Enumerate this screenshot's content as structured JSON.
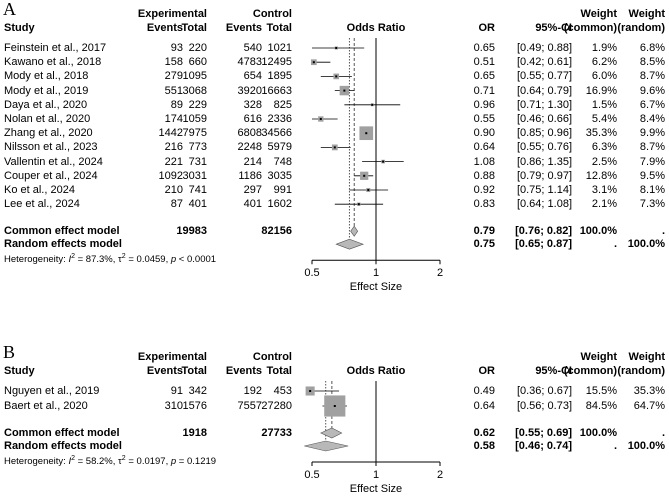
{
  "colors": {
    "box": "#a0a0a0",
    "diamond": "#b8b8b8",
    "line": "#000000",
    "dashed": "#555555"
  },
  "headers": {
    "experimental": "Experimental",
    "control": "Control",
    "study": "Study",
    "events": "Events",
    "total": "Total",
    "odds_ratio": "Odds Ratio",
    "or": "OR",
    "ci": "95%-CI",
    "weight": "Weight",
    "common": "(common)",
    "random": "(random)",
    "x_label": "Effect Size"
  },
  "chart_data": [
    {
      "type": "forest",
      "panel": "A",
      "xlim": [
        0.5,
        2
      ],
      "x_ticks": [
        "0.5",
        "1",
        "2"
      ],
      "xlabel": "Effect Size",
      "studies": [
        {
          "study": "Feinstein et al., 2017",
          "e_events": "93",
          "e_total": "220",
          "c_events": "540",
          "c_total": "1021",
          "or": 0.65,
          "lo": 0.49,
          "hi": 0.88,
          "or_text": "0.65",
          "ci_text": "[0.49; 0.88]",
          "w_common": "1.9%",
          "w_random": "6.8%",
          "wc": 1.9
        },
        {
          "study": "Kawano et al., 2018",
          "e_events": "158",
          "e_total": "660",
          "c_events": "4783",
          "c_total": "12495",
          "or": 0.51,
          "lo": 0.42,
          "hi": 0.61,
          "or_text": "0.51",
          "ci_text": "[0.42; 0.61]",
          "w_common": "6.2%",
          "w_random": "8.5%",
          "wc": 6.2
        },
        {
          "study": "Mody et al., 2018",
          "e_events": "279",
          "e_total": "1095",
          "c_events": "654",
          "c_total": "1895",
          "or": 0.65,
          "lo": 0.55,
          "hi": 0.77,
          "or_text": "0.65",
          "ci_text": "[0.55; 0.77]",
          "w_common": "6.0%",
          "w_random": "8.7%",
          "wc": 6.0
        },
        {
          "study": "Mody et al., 2019",
          "e_events": "551",
          "e_total": "3068",
          "c_events": "3920",
          "c_total": "16663",
          "or": 0.71,
          "lo": 0.64,
          "hi": 0.79,
          "or_text": "0.71",
          "ci_text": "[0.64; 0.79]",
          "w_common": "16.9%",
          "w_random": "9.6%",
          "wc": 16.9
        },
        {
          "study": "Daya et al., 2020",
          "e_events": "89",
          "e_total": "229",
          "c_events": "328",
          "c_total": "825",
          "or": 0.96,
          "lo": 0.71,
          "hi": 1.3,
          "or_text": "0.96",
          "ci_text": "[0.71; 1.30]",
          "w_common": "1.5%",
          "w_random": "6.7%",
          "wc": 1.5
        },
        {
          "study": "Nolan et al., 2020",
          "e_events": "174",
          "e_total": "1059",
          "c_events": "616",
          "c_total": "2336",
          "or": 0.55,
          "lo": 0.46,
          "hi": 0.66,
          "or_text": "0.55",
          "ci_text": "[0.46; 0.66]",
          "w_common": "5.4%",
          "w_random": "8.4%",
          "wc": 5.4
        },
        {
          "study": "Zhang et al., 2020",
          "e_events": "1442",
          "e_total": "7975",
          "c_events": "6808",
          "c_total": "34566",
          "or": 0.9,
          "lo": 0.85,
          "hi": 0.96,
          "or_text": "0.90",
          "ci_text": "[0.85; 0.96]",
          "w_common": "35.3%",
          "w_random": "9.9%",
          "wc": 35.3
        },
        {
          "study": "Nilsson et al., 2023",
          "e_events": "216",
          "e_total": "773",
          "c_events": "2248",
          "c_total": "5979",
          "or": 0.64,
          "lo": 0.55,
          "hi": 0.76,
          "or_text": "0.64",
          "ci_text": "[0.55; 0.76]",
          "w_common": "6.3%",
          "w_random": "8.7%",
          "wc": 6.3
        },
        {
          "study": "Vallentin et al., 2024",
          "e_events": "221",
          "e_total": "731",
          "c_events": "214",
          "c_total": "748",
          "or": 1.08,
          "lo": 0.86,
          "hi": 1.35,
          "or_text": "1.08",
          "ci_text": "[0.86; 1.35]",
          "w_common": "2.5%",
          "w_random": "7.9%",
          "wc": 2.5
        },
        {
          "study": "Couper et al., 2024",
          "e_events": "1092",
          "e_total": "3031",
          "c_events": "1186",
          "c_total": "3035",
          "or": 0.88,
          "lo": 0.79,
          "hi": 0.97,
          "or_text": "0.88",
          "ci_text": "[0.79; 0.97]",
          "w_common": "12.8%",
          "w_random": "9.5%",
          "wc": 12.8
        },
        {
          "study": "Ko et al., 2024",
          "e_events": "210",
          "e_total": "741",
          "c_events": "297",
          "c_total": "991",
          "or": 0.92,
          "lo": 0.75,
          "hi": 1.14,
          "or_text": "0.92",
          "ci_text": "[0.75; 1.14]",
          "w_common": "3.1%",
          "w_random": "8.1%",
          "wc": 3.1
        },
        {
          "study": "Lee et al., 2024",
          "e_events": "87",
          "e_total": "401",
          "c_events": "401",
          "c_total": "1602",
          "or": 0.83,
          "lo": 0.64,
          "hi": 1.08,
          "or_text": "0.83",
          "ci_text": "[0.64; 1.08]",
          "w_common": "2.1%",
          "w_random": "7.3%",
          "wc": 2.1
        }
      ],
      "common": {
        "label": "Common effect model",
        "e_total": "19983",
        "c_total": "82156",
        "or": 0.79,
        "lo": 0.76,
        "hi": 0.82,
        "or_text": "0.79",
        "ci_text": "[0.76; 0.82]",
        "w_common": "100.0%",
        "w_random": "."
      },
      "random": {
        "label": "Random effects model",
        "or": 0.75,
        "lo": 0.65,
        "hi": 0.87,
        "or_text": "0.75",
        "ci_text": "[0.65; 0.87]",
        "w_common": ".",
        "w_random": "100.0%"
      },
      "heterogeneity": {
        "prefix": "Heterogeneity: ",
        "i2": "I",
        "i2_val": " = 87.3%, ",
        "tau": "τ",
        "tau_val": " = 0.0459, ",
        "p": "p",
        "p_val": " < 0.0001"
      }
    },
    {
      "type": "forest",
      "panel": "B",
      "xlim": [
        0.5,
        2
      ],
      "x_ticks": [
        "0.5",
        "1",
        "2"
      ],
      "xlabel": "Effect Size",
      "studies": [
        {
          "study": "Nguyen et al., 2019",
          "e_events": "91",
          "e_total": "342",
          "c_events": "192",
          "c_total": "453",
          "or": 0.49,
          "lo": 0.36,
          "hi": 0.67,
          "or_text": "0.49",
          "ci_text": "[0.36; 0.67]",
          "w_common": "15.5%",
          "w_random": "35.3%",
          "wc": 15.5
        },
        {
          "study": "Baert et al., 2020",
          "e_events": "310",
          "e_total": "1576",
          "c_events": "7557",
          "c_total": "27280",
          "or": 0.64,
          "lo": 0.56,
          "hi": 0.73,
          "or_text": "0.64",
          "ci_text": "[0.56; 0.73]",
          "w_common": "84.5%",
          "w_random": "64.7%",
          "wc": 84.5
        }
      ],
      "common": {
        "label": "Common effect model",
        "e_total": "1918",
        "c_total": "27733",
        "or": 0.62,
        "lo": 0.55,
        "hi": 0.69,
        "or_text": "0.62",
        "ci_text": "[0.55; 0.69]",
        "w_common": "100.0%",
        "w_random": "."
      },
      "random": {
        "label": "Random effects model",
        "or": 0.58,
        "lo": 0.46,
        "hi": 0.74,
        "or_text": "0.58",
        "ci_text": "[0.46; 0.74]",
        "w_common": ".",
        "w_random": "100.0%"
      },
      "heterogeneity": {
        "prefix": "Heterogeneity: ",
        "i2": "I",
        "i2_val": " = 58.2%, ",
        "tau": "τ",
        "tau_val": " = 0.0197, ",
        "p": "p",
        "p_val": " = 0.1219"
      }
    }
  ]
}
